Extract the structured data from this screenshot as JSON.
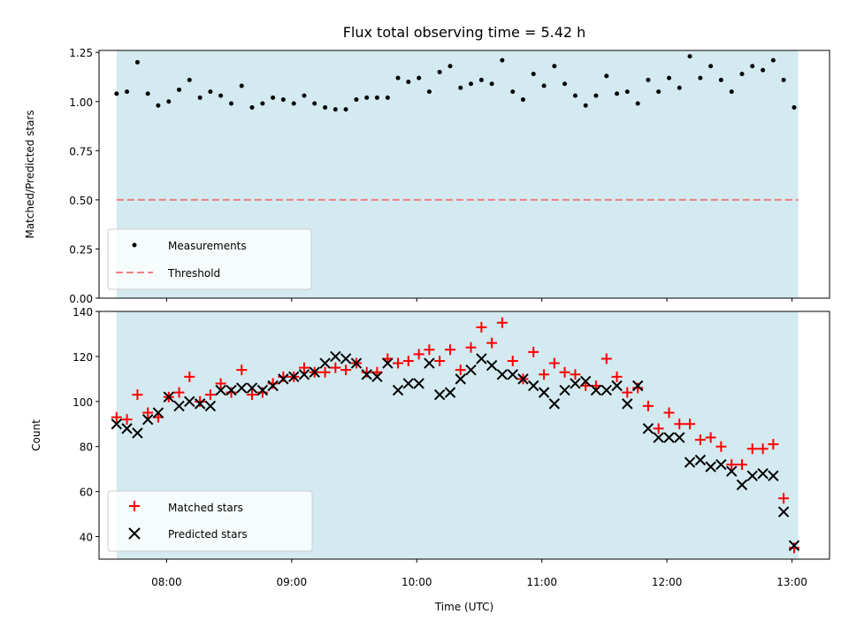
{
  "chart_data": [
    {
      "type": "scatter",
      "title": "Flux total observing time = 5.42 h",
      "xlabel": "",
      "ylabel": "Matched/Predicted stars",
      "ylim": [
        0,
        1.26
      ],
      "yticks": [
        "0.00",
        "0.25",
        "0.50",
        "0.75",
        "1.00",
        "1.25"
      ],
      "ytick_values": [
        0,
        0.25,
        0.5,
        0.75,
        1.0,
        1.25
      ],
      "xlim_hours": [
        7.46,
        13.3
      ],
      "shade_hours": [
        7.6,
        13.05
      ],
      "threshold": 0.5,
      "legend": {
        "placement": "lower-left",
        "measurements": "Measurements",
        "threshold": "Threshold"
      },
      "series": [
        {
          "name": "Measurements",
          "x_hours": [
            7.6,
            7.683,
            7.767,
            7.85,
            7.933,
            8.017,
            8.1,
            8.183,
            8.267,
            8.35,
            8.433,
            8.517,
            8.6,
            8.683,
            8.767,
            8.85,
            8.933,
            9.017,
            9.1,
            9.183,
            9.267,
            9.35,
            9.433,
            9.517,
            9.6,
            9.683,
            9.767,
            9.85,
            9.933,
            10.017,
            10.1,
            10.183,
            10.267,
            10.35,
            10.433,
            10.517,
            10.6,
            10.683,
            10.767,
            10.85,
            10.933,
            11.017,
            11.1,
            11.183,
            11.267,
            11.35,
            11.433,
            11.517,
            11.6,
            11.683,
            11.767,
            11.85,
            11.933,
            12.017,
            12.1,
            12.183,
            12.267,
            12.35,
            12.433,
            12.517,
            12.6,
            12.683,
            12.767,
            12.85,
            12.933,
            13.017
          ],
          "values": [
            1.04,
            1.05,
            1.2,
            1.04,
            0.98,
            1.0,
            1.06,
            1.11,
            1.02,
            1.05,
            1.03,
            0.99,
            1.08,
            0.97,
            0.99,
            1.02,
            1.01,
            0.99,
            1.03,
            0.99,
            0.97,
            0.96,
            0.96,
            1.01,
            1.02,
            1.02,
            1.02,
            1.12,
            1.1,
            1.12,
            1.05,
            1.15,
            1.18,
            1.07,
            1.09,
            1.11,
            1.09,
            1.21,
            1.05,
            1.01,
            1.14,
            1.08,
            1.18,
            1.09,
            1.03,
            0.98,
            1.03,
            1.13,
            1.04,
            1.05,
            0.99,
            1.11,
            1.05,
            1.12,
            1.07,
            1.23,
            1.12,
            1.18,
            1.11,
            1.05,
            1.14,
            1.18,
            1.16,
            1.21,
            1.11,
            0.97
          ]
        }
      ]
    },
    {
      "type": "scatter",
      "title": "",
      "xlabel": "Time (UTC)",
      "ylabel": "Count",
      "ylim": [
        30,
        140
      ],
      "yticks": [
        "40",
        "60",
        "80",
        "100",
        "120",
        "140"
      ],
      "ytick_values": [
        40,
        60,
        80,
        100,
        120,
        140
      ],
      "xlim_hours": [
        7.46,
        13.3
      ],
      "shade_hours": [
        7.6,
        13.05
      ],
      "xticks": [
        "08:00",
        "09:00",
        "10:00",
        "11:00",
        "12:00",
        "13:00"
      ],
      "xtick_values": [
        8,
        9,
        10,
        11,
        12,
        13
      ],
      "legend": {
        "placement": "lower-left",
        "matched": "Matched stars",
        "predicted": "Predicted stars"
      },
      "series": [
        {
          "name": "Matched stars",
          "x_hours": [
            7.6,
            7.683,
            7.767,
            7.85,
            7.933,
            8.017,
            8.1,
            8.183,
            8.267,
            8.35,
            8.433,
            8.517,
            8.6,
            8.683,
            8.767,
            8.85,
            8.933,
            9.017,
            9.1,
            9.183,
            9.267,
            9.35,
            9.433,
            9.517,
            9.6,
            9.683,
            9.767,
            9.85,
            9.933,
            10.017,
            10.1,
            10.183,
            10.267,
            10.35,
            10.433,
            10.517,
            10.6,
            10.683,
            10.767,
            10.85,
            10.933,
            11.017,
            11.1,
            11.183,
            11.267,
            11.35,
            11.433,
            11.517,
            11.6,
            11.683,
            11.767,
            11.85,
            11.933,
            12.017,
            12.1,
            12.183,
            12.267,
            12.35,
            12.433,
            12.517,
            12.6,
            12.683,
            12.767,
            12.85,
            12.933,
            13.017
          ],
          "values": [
            93,
            92,
            103,
            95,
            93,
            102,
            104,
            111,
            100,
            103,
            108,
            104,
            114,
            103,
            104,
            108,
            111,
            111,
            115,
            113,
            113,
            115,
            114,
            117,
            113,
            113,
            119,
            117,
            118,
            121,
            123,
            118,
            123,
            114,
            124,
            133,
            126,
            135,
            118,
            110,
            122,
            112,
            117,
            113,
            112,
            107,
            107,
            119,
            111,
            104,
            106,
            98,
            88,
            95,
            90,
            90,
            83,
            84,
            80,
            72,
            72,
            79,
            79,
            81,
            57,
            35
          ]
        },
        {
          "name": "Predicted stars",
          "x_hours": [
            7.6,
            7.683,
            7.767,
            7.85,
            7.933,
            8.017,
            8.1,
            8.183,
            8.267,
            8.35,
            8.433,
            8.517,
            8.6,
            8.683,
            8.767,
            8.85,
            8.933,
            9.017,
            9.1,
            9.183,
            9.267,
            9.35,
            9.433,
            9.517,
            9.6,
            9.683,
            9.767,
            9.85,
            9.933,
            10.017,
            10.1,
            10.183,
            10.267,
            10.35,
            10.433,
            10.517,
            10.6,
            10.683,
            10.767,
            10.85,
            10.933,
            11.017,
            11.1,
            11.183,
            11.267,
            11.35,
            11.433,
            11.517,
            11.6,
            11.683,
            11.767,
            11.85,
            11.933,
            12.017,
            12.1,
            12.183,
            12.267,
            12.35,
            12.433,
            12.517,
            12.6,
            12.683,
            12.767,
            12.85,
            12.933,
            13.017
          ],
          "values": [
            90,
            88,
            86,
            92,
            95,
            102,
            98,
            100,
            99,
            98,
            105,
            105,
            106,
            106,
            105,
            107,
            110,
            111,
            112,
            113,
            117,
            120,
            119,
            117,
            112,
            111,
            117,
            105,
            108,
            108,
            117,
            103,
            104,
            110,
            114,
            119,
            116,
            112,
            112,
            110,
            107,
            104,
            99,
            105,
            108,
            109,
            105,
            105,
            107,
            99,
            107,
            88,
            84,
            84,
            84,
            73,
            74,
            71,
            72,
            69,
            63,
            67,
            68,
            67,
            51,
            36
          ]
        }
      ]
    }
  ],
  "colors": {
    "shade": "#d3eaf0",
    "threshold": "#f08080",
    "matched": "#ff0000",
    "predicted": "#000000",
    "measurement": "#000000"
  }
}
